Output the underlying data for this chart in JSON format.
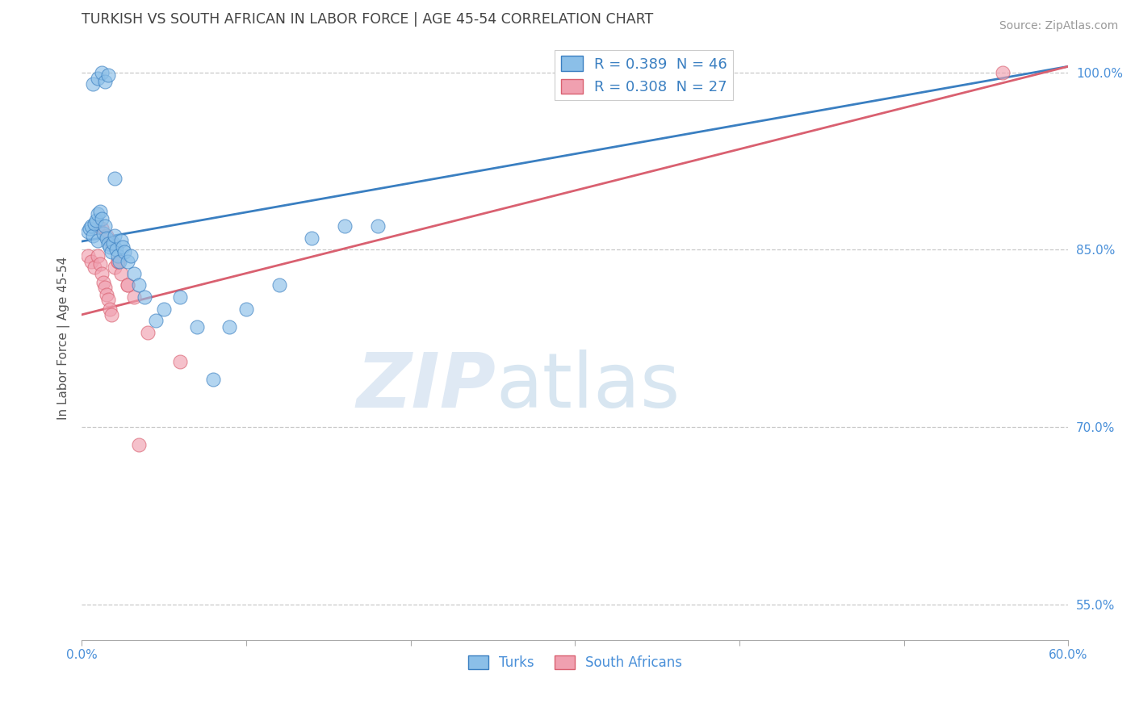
{
  "title": "TURKISH VS SOUTH AFRICAN IN LABOR FORCE | AGE 45-54 CORRELATION CHART",
  "source": "Source: ZipAtlas.com",
  "ylabel": "In Labor Force | Age 45-54",
  "xlim": [
    0.0,
    0.6
  ],
  "ylim": [
    0.52,
    1.03
  ],
  "xticks": [
    0.0,
    0.1,
    0.2,
    0.3,
    0.4,
    0.5,
    0.6
  ],
  "xticklabels": [
    "0.0%",
    "",
    "",
    "",
    "",
    "",
    "60.0%"
  ],
  "ytick_positions": [
    0.55,
    0.7,
    0.85,
    1.0
  ],
  "ytick_labels": [
    "55.0%",
    "70.0%",
    "85.0%",
    "100.0%"
  ],
  "legend_r1": "R = 0.389",
  "legend_n1": "N = 46",
  "legend_r2": "R = 0.308",
  "legend_n2": "N = 27",
  "color_turks": "#8bbfe8",
  "color_sa": "#f0a0b0",
  "color_turks_line": "#3a7fc1",
  "color_sa_line": "#d96070",
  "legend_text_color": "#3a7fc1",
  "title_color": "#444444",
  "axis_color": "#4a90d9",
  "grid_color": "#c8c8c8",
  "watermark_zip": "ZIP",
  "watermark_atlas": "atlas",
  "turks_x": [
    0.004,
    0.005,
    0.006,
    0.007,
    0.008,
    0.009,
    0.01,
    0.01,
    0.011,
    0.012,
    0.013,
    0.014,
    0.015,
    0.016,
    0.017,
    0.018,
    0.019,
    0.02,
    0.021,
    0.022,
    0.023,
    0.024,
    0.025,
    0.026,
    0.028,
    0.03,
    0.032,
    0.035,
    0.038,
    0.045,
    0.05,
    0.06,
    0.07,
    0.08,
    0.09,
    0.1,
    0.12,
    0.14,
    0.16,
    0.18,
    0.007,
    0.01,
    0.012,
    0.014,
    0.016,
    0.02
  ],
  "turks_y": [
    0.865,
    0.868,
    0.87,
    0.862,
    0.872,
    0.875,
    0.88,
    0.858,
    0.882,
    0.876,
    0.864,
    0.87,
    0.86,
    0.855,
    0.852,
    0.848,
    0.856,
    0.862,
    0.85,
    0.845,
    0.84,
    0.858,
    0.852,
    0.848,
    0.84,
    0.845,
    0.83,
    0.82,
    0.81,
    0.79,
    0.8,
    0.81,
    0.785,
    0.74,
    0.785,
    0.8,
    0.82,
    0.86,
    0.87,
    0.87,
    0.99,
    0.995,
    1.0,
    0.992,
    0.998,
    0.91
  ],
  "sa_x": [
    0.004,
    0.006,
    0.008,
    0.01,
    0.011,
    0.012,
    0.013,
    0.014,
    0.015,
    0.016,
    0.017,
    0.018,
    0.02,
    0.022,
    0.024,
    0.028,
    0.032,
    0.04,
    0.06,
    0.01,
    0.012,
    0.015,
    0.018,
    0.022,
    0.028,
    0.035,
    0.56
  ],
  "sa_y": [
    0.845,
    0.84,
    0.835,
    0.845,
    0.838,
    0.83,
    0.822,
    0.818,
    0.812,
    0.808,
    0.8,
    0.795,
    0.835,
    0.84,
    0.83,
    0.82,
    0.81,
    0.78,
    0.755,
    0.87,
    0.868,
    0.862,
    0.855,
    0.84,
    0.82,
    0.685,
    1.0
  ],
  "figsize": [
    14.06,
    8.92
  ],
  "dpi": 100,
  "blue_line_x0": 0.0,
  "blue_line_y0": 0.857,
  "blue_line_x1": 0.6,
  "blue_line_y1": 1.005,
  "pink_line_x0": 0.0,
  "pink_line_y0": 0.795,
  "pink_line_x1": 0.6,
  "pink_line_y1": 1.005
}
